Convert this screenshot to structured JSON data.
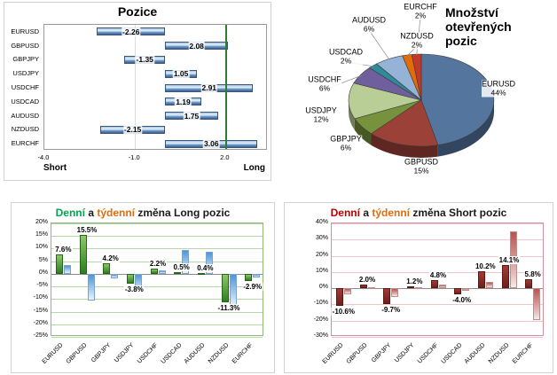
{
  "chart_data": [
    {
      "id": "positions",
      "type": "bar",
      "orientation": "horizontal",
      "title": "Pozice",
      "categories": [
        "EURUSD",
        "GBPUSD",
        "GBPJPY",
        "USDJPY",
        "USDCHF",
        "USDCAD",
        "AUDUSD",
        "NZDUSD",
        "EURCHF"
      ],
      "values": [
        -2.26,
        2.08,
        -1.35,
        1.05,
        2.91,
        1.19,
        1.75,
        -2.15,
        3.06
      ],
      "value_labels": [
        "-2.26",
        "2.08",
        "-1.35",
        "1.05",
        "2.91",
        "1.19",
        "1.75",
        "-2.15",
        "3.06"
      ],
      "xlim": [
        -4.0,
        3.4
      ],
      "x_ticks": [
        {
          "value": -4.0,
          "label": "-4.0"
        },
        {
          "value": -1.0,
          "label": "-1.0"
        },
        {
          "value": 2.0,
          "label": "2.0"
        }
      ],
      "ref_line": {
        "value": 2.0,
        "color": "#2e7d32"
      },
      "bar_color": "#5b86b8",
      "axis_left_label": "Short",
      "axis_right_label": "Long"
    },
    {
      "id": "open-positions",
      "type": "pie",
      "title_lines": [
        "Množství",
        "otevřených",
        "pozic"
      ],
      "slices": [
        {
          "label": "EURUSD",
          "pct": 44,
          "pct_label": "44%",
          "color": "#54759e"
        },
        {
          "label": "GBPUSD",
          "pct": 15,
          "pct_label": "15%",
          "color": "#9c4138"
        },
        {
          "label": "GBPJPY",
          "pct": 6,
          "pct_label": "6%",
          "color": "#76923c"
        },
        {
          "label": "USDJPY",
          "pct": 12,
          "pct_label": "12%",
          "color": "#b9cd96"
        },
        {
          "label": "USDCHF",
          "pct": 6,
          "pct_label": "6%",
          "color": "#6f5f9c"
        },
        {
          "label": "USDCAD",
          "pct": 2,
          "pct_label": "2%",
          "color": "#2e8b9a"
        },
        {
          "label": "AUDUSD",
          "pct": 6,
          "pct_label": "6%",
          "color": "#95b3d7"
        },
        {
          "label": "NZDUSD",
          "pct": 2,
          "pct_label": "2%",
          "color": "#e26b0a"
        },
        {
          "label": "EURCHF",
          "pct": 2,
          "pct_label": "2%",
          "color": "#c0392b"
        }
      ]
    },
    {
      "id": "long-change",
      "type": "bar",
      "title_parts": [
        {
          "text": "Denní",
          "color": "#00a550"
        },
        {
          "text": " a ",
          "color": "#1a1a1a"
        },
        {
          "text": "týdenní",
          "color": "#e36c0a"
        },
        {
          "text": " změna Long pozic",
          "color": "#1a1a1a"
        }
      ],
      "categories": [
        "EURUSD",
        "GBPUSD",
        "GBPJPY",
        "USDJPY",
        "USDCHF",
        "USDCAD",
        "AUDUSD",
        "NZDUSD",
        "EURCHF"
      ],
      "series": [
        {
          "name": "denní",
          "color": "#3f9b3f",
          "values": [
            7.6,
            15.5,
            4.2,
            -3.8,
            2.2,
            0.5,
            0.4,
            -11.3,
            -2.9
          ]
        },
        {
          "name": "týdenní",
          "color": "#5b9bd5",
          "values": [
            3.4,
            -10.5,
            -1.8,
            -7.0,
            1.4,
            9.6,
            8.8,
            -13.2,
            -1.4
          ]
        }
      ],
      "data_labels": [
        "7.6%",
        "15.5%",
        "4.2%",
        "-3.8%",
        "2.2%",
        "0.5%",
        "0.4%",
        "-11.3%",
        "-2.9%"
      ],
      "ylim": [
        -25,
        20
      ],
      "ytick_step": 5,
      "grid_color": "#b6d7a8"
    },
    {
      "id": "short-change",
      "type": "bar",
      "title_parts": [
        {
          "text": "Denní",
          "color": "#c00000"
        },
        {
          "text": " a ",
          "color": "#1a1a1a"
        },
        {
          "text": "týdenní",
          "color": "#e36c0a"
        },
        {
          "text": " změna Short pozic",
          "color": "#1a1a1a"
        }
      ],
      "categories": [
        "EURUSD",
        "GBPUSD",
        "GBPJPY",
        "USDJPY",
        "USDCHF",
        "USDCAD",
        "AUDUSD",
        "NZDUSD",
        "EURCHF"
      ],
      "series": [
        {
          "name": "denní",
          "color": "#8e2a25",
          "values": [
            -10.6,
            2.0,
            -9.7,
            1.2,
            4.8,
            -4.0,
            10.2,
            14.1,
            5.8
          ]
        },
        {
          "name": "týdenní",
          "color": "#b85450",
          "values": [
            -3.5,
            0.8,
            -5.5,
            0.6,
            2.2,
            -1.8,
            4.0,
            35.0,
            -19.5
          ]
        }
      ],
      "data_labels": [
        "-10.6%",
        "2.0%",
        "-9.7%",
        "1.2%",
        "4.8%",
        "-4.0%",
        "10.2%",
        "14.1%",
        "5.8%"
      ],
      "ylim": [
        -30,
        40
      ],
      "ytick_step": 10,
      "grid_color": "#f2c4cc"
    }
  ]
}
